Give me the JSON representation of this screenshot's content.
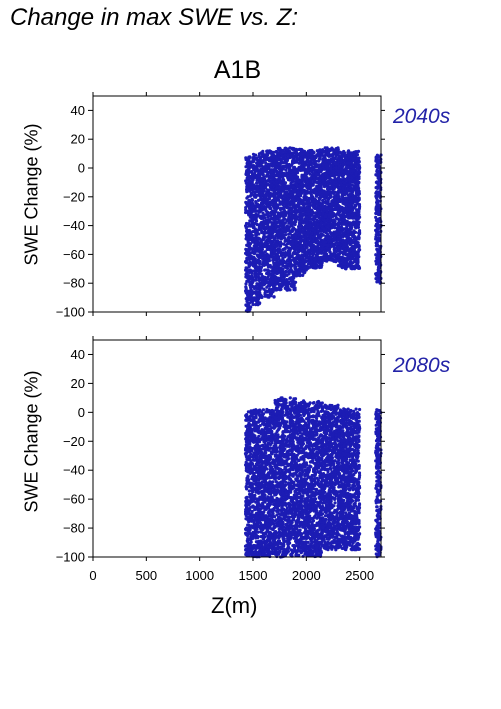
{
  "figure": {
    "title": "Change in max SWE vs. Z:",
    "scenario": "A1B",
    "xlabel": "Z(m)"
  },
  "chart_data": [
    {
      "type": "scatter",
      "panel_label": "2040s",
      "ylabel": "SWE Change (%)",
      "xlim": [
        0,
        2700
      ],
      "ylim": [
        -100,
        50
      ],
      "xticks": [
        0,
        500,
        1000,
        1500,
        2000,
        2500
      ],
      "yticks": [
        -100,
        -80,
        -60,
        -40,
        -20,
        0,
        20,
        40
      ],
      "marker_color": "#1c1cb4",
      "point_clusters": [
        {
          "x_range": [
            1430,
            1480
          ],
          "y_range": [
            -100,
            8
          ]
        },
        {
          "x_range": [
            1480,
            1570
          ],
          "y_range": [
            -95,
            10
          ]
        },
        {
          "x_range": [
            1570,
            1700
          ],
          "y_range": [
            -90,
            12
          ]
        },
        {
          "x_range": [
            1700,
            1900
          ],
          "y_range": [
            -85,
            14
          ]
        },
        {
          "x_range": [
            1900,
            2000
          ],
          "y_range": [
            -75,
            13
          ]
        },
        {
          "x_range": [
            2000,
            2150
          ],
          "y_range": [
            -70,
            13
          ]
        },
        {
          "x_range": [
            2150,
            2300
          ],
          "y_range": [
            -65,
            14
          ]
        },
        {
          "x_range": [
            2300,
            2500
          ],
          "y_range": [
            -70,
            12
          ]
        },
        {
          "x_range": [
            2650,
            2700
          ],
          "y_range": [
            -80,
            10
          ]
        }
      ]
    },
    {
      "type": "scatter",
      "panel_label": "2080s",
      "ylabel": "SWE Change (%)",
      "xlabel": "Z(m)",
      "xlim": [
        0,
        2700
      ],
      "ylim": [
        -100,
        50
      ],
      "xticks": [
        0,
        500,
        1000,
        1500,
        2000,
        2500
      ],
      "yticks": [
        -100,
        -80,
        -60,
        -40,
        -20,
        0,
        20,
        40
      ],
      "marker_color": "#1c1cb4",
      "point_clusters": [
        {
          "x_range": [
            1430,
            1480
          ],
          "y_range": [
            -100,
            1
          ]
        },
        {
          "x_range": [
            1480,
            1700
          ],
          "y_range": [
            -100,
            2
          ]
        },
        {
          "x_range": [
            1700,
            1900
          ],
          "y_range": [
            -100,
            10
          ]
        },
        {
          "x_range": [
            1900,
            2150
          ],
          "y_range": [
            -100,
            8
          ]
        },
        {
          "x_range": [
            2150,
            2300
          ],
          "y_range": [
            -95,
            5
          ]
        },
        {
          "x_range": [
            2300,
            2500
          ],
          "y_range": [
            -95,
            3
          ]
        },
        {
          "x_range": [
            2650,
            2700
          ],
          "y_range": [
            -100,
            2
          ]
        }
      ]
    }
  ]
}
